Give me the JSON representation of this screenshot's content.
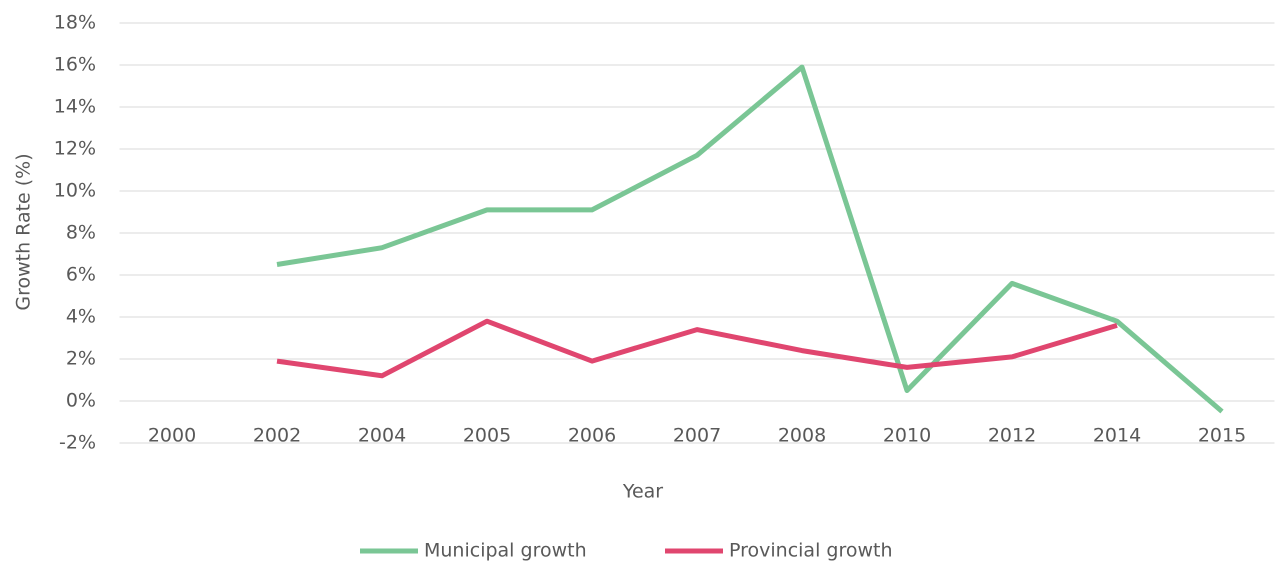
{
  "chart_data": {
    "type": "line",
    "categories": [
      "2000",
      "2002",
      "2004",
      "2005",
      "2006",
      "2007",
      "2008",
      "2010",
      "2012",
      "2014",
      "2015"
    ],
    "series": [
      {
        "name": "Municipal growth",
        "color": "#7ac695",
        "values": [
          null,
          6.5,
          7.3,
          9.1,
          9.1,
          11.7,
          15.9,
          0.5,
          5.6,
          3.8,
          -0.5
        ]
      },
      {
        "name": "Provincial growth",
        "color": "#e0466f",
        "values": [
          null,
          1.9,
          1.2,
          3.8,
          1.9,
          3.4,
          2.4,
          1.6,
          2.1,
          3.6,
          null
        ]
      }
    ],
    "xlabel": "Year",
    "ylabel": "Growth Rate (%)",
    "ylim": [
      -2,
      18
    ],
    "yticks": [
      {
        "value": -2,
        "label": "-2%"
      },
      {
        "value": 0,
        "label": "0%"
      },
      {
        "value": 2,
        "label": "2%"
      },
      {
        "value": 4,
        "label": "4%"
      },
      {
        "value": 6,
        "label": "6%"
      },
      {
        "value": 8,
        "label": "8%"
      },
      {
        "value": 10,
        "label": "10%"
      },
      {
        "value": 12,
        "label": "12%"
      },
      {
        "value": 14,
        "label": "14%"
      },
      {
        "value": 16,
        "label": "16%"
      },
      {
        "value": 18,
        "label": "18%"
      }
    ],
    "grid": true,
    "legend": "bottom"
  }
}
